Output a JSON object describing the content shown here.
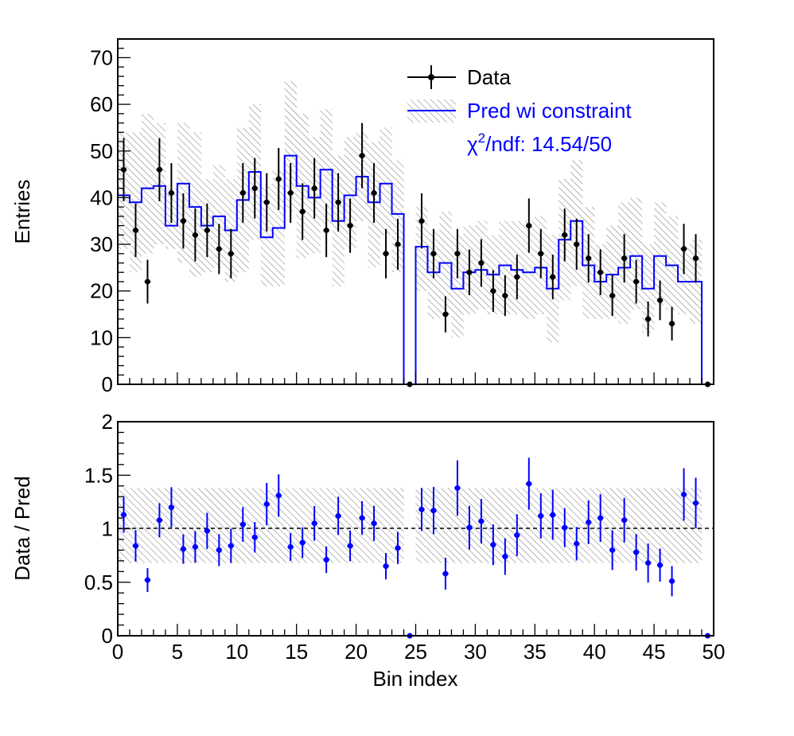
{
  "colors": {
    "data": "#000000",
    "prediction": "#0000ff",
    "band": "#7f7f7f",
    "frame": "#000000"
  },
  "chart_data": [
    {
      "type": "line",
      "panel": "main",
      "ylabel": "Entries",
      "xlim": [
        0,
        50
      ],
      "ylim": [
        0,
        74
      ],
      "yticks": [
        0,
        10,
        20,
        30,
        40,
        50,
        60,
        70
      ],
      "legend": {
        "position": "top-right",
        "entries": [
          "Data",
          "Pred wi constraint"
        ],
        "chi2_text": "/ndf: 14.54/50",
        "chi2_symbol": "χ",
        "chi2_sup": "2"
      },
      "series": [
        {
          "name": "Data",
          "style": "points-with-errors",
          "values": [
            46,
            33,
            22,
            46,
            41,
            35,
            32,
            33,
            29,
            28,
            41,
            42,
            39,
            44,
            41,
            37,
            42,
            33,
            39,
            34,
            49,
            41,
            28,
            30,
            0,
            35,
            28,
            15,
            28,
            24,
            26,
            20,
            19,
            23,
            34,
            28,
            23,
            32,
            30,
            27,
            24,
            19,
            27,
            22,
            14,
            18,
            13,
            29,
            27,
            0
          ]
        },
        {
          "name": "Pred wi constraint",
          "style": "step-with-hatched-band",
          "values": [
            40.5,
            39,
            42,
            42.5,
            34,
            43,
            38,
            34,
            36,
            33,
            39.5,
            45.5,
            31.5,
            33.5,
            49,
            42.5,
            40,
            46,
            35,
            40.5,
            44.5,
            39,
            43,
            36.5,
            0,
            29.5,
            24,
            26,
            20.5,
            24,
            24.5,
            23.5,
            25.5,
            24.5,
            24,
            25,
            20.5,
            31,
            35,
            25.5,
            22,
            23.5,
            25,
            27.5,
            20.5,
            27.5,
            25.5,
            22,
            22,
            0
          ],
          "band_low": [
            29,
            24,
            28,
            30,
            29,
            26,
            23,
            24,
            25,
            22,
            24,
            31,
            21,
            21,
            37,
            27,
            28,
            34,
            21,
            29,
            35,
            25,
            32,
            24,
            0,
            20,
            14,
            15,
            10,
            15,
            16,
            15,
            15,
            15,
            14,
            15,
            9,
            18,
            21,
            14,
            14,
            14,
            13,
            16,
            11,
            17,
            16,
            15,
            13,
            0
          ],
          "band_high": [
            54,
            54,
            58,
            56,
            42,
            56,
            54,
            44,
            47,
            44,
            55,
            60,
            43,
            46,
            65,
            58,
            53,
            59,
            49,
            53,
            54,
            52,
            55,
            48,
            0,
            38,
            33,
            37,
            32,
            34,
            35,
            32,
            35,
            35,
            35,
            36,
            32,
            44,
            48,
            38,
            30,
            34,
            39,
            40,
            30,
            39,
            36,
            30,
            31,
            0
          ]
        }
      ]
    },
    {
      "type": "scatter",
      "panel": "ratio",
      "xlabel": "Bin index",
      "ylabel": "Data / Pred",
      "xlim": [
        0,
        50
      ],
      "ylim": [
        0,
        2
      ],
      "xticks": [
        0,
        5,
        10,
        15,
        20,
        25,
        30,
        35,
        40,
        45,
        50
      ],
      "yticks": [
        0,
        0.5,
        1,
        1.5,
        2
      ],
      "ytick_labels": [
        "0",
        "0.5",
        "1",
        "1.5",
        "2"
      ],
      "reference_line": 1,
      "band": [
        0.68,
        1.38
      ],
      "series": [
        {
          "name": "Data / Pred",
          "values": [
            1.13,
            0.84,
            0.52,
            1.08,
            1.2,
            0.81,
            0.83,
            0.98,
            0.8,
            0.84,
            1.04,
            0.92,
            1.23,
            1.31,
            0.83,
            0.87,
            1.05,
            0.71,
            1.12,
            0.84,
            1.1,
            1.05,
            0.65,
            0.82,
            0,
            1.18,
            1.17,
            0.58,
            1.38,
            1.01,
            1.07,
            0.85,
            0.74,
            0.94,
            1.42,
            1.12,
            1.13,
            1.01,
            0.86,
            1.06,
            1.1,
            0.8,
            1.08,
            0.78,
            0.68,
            0.66,
            0.51,
            1.32,
            1.24,
            0
          ]
        }
      ]
    }
  ]
}
